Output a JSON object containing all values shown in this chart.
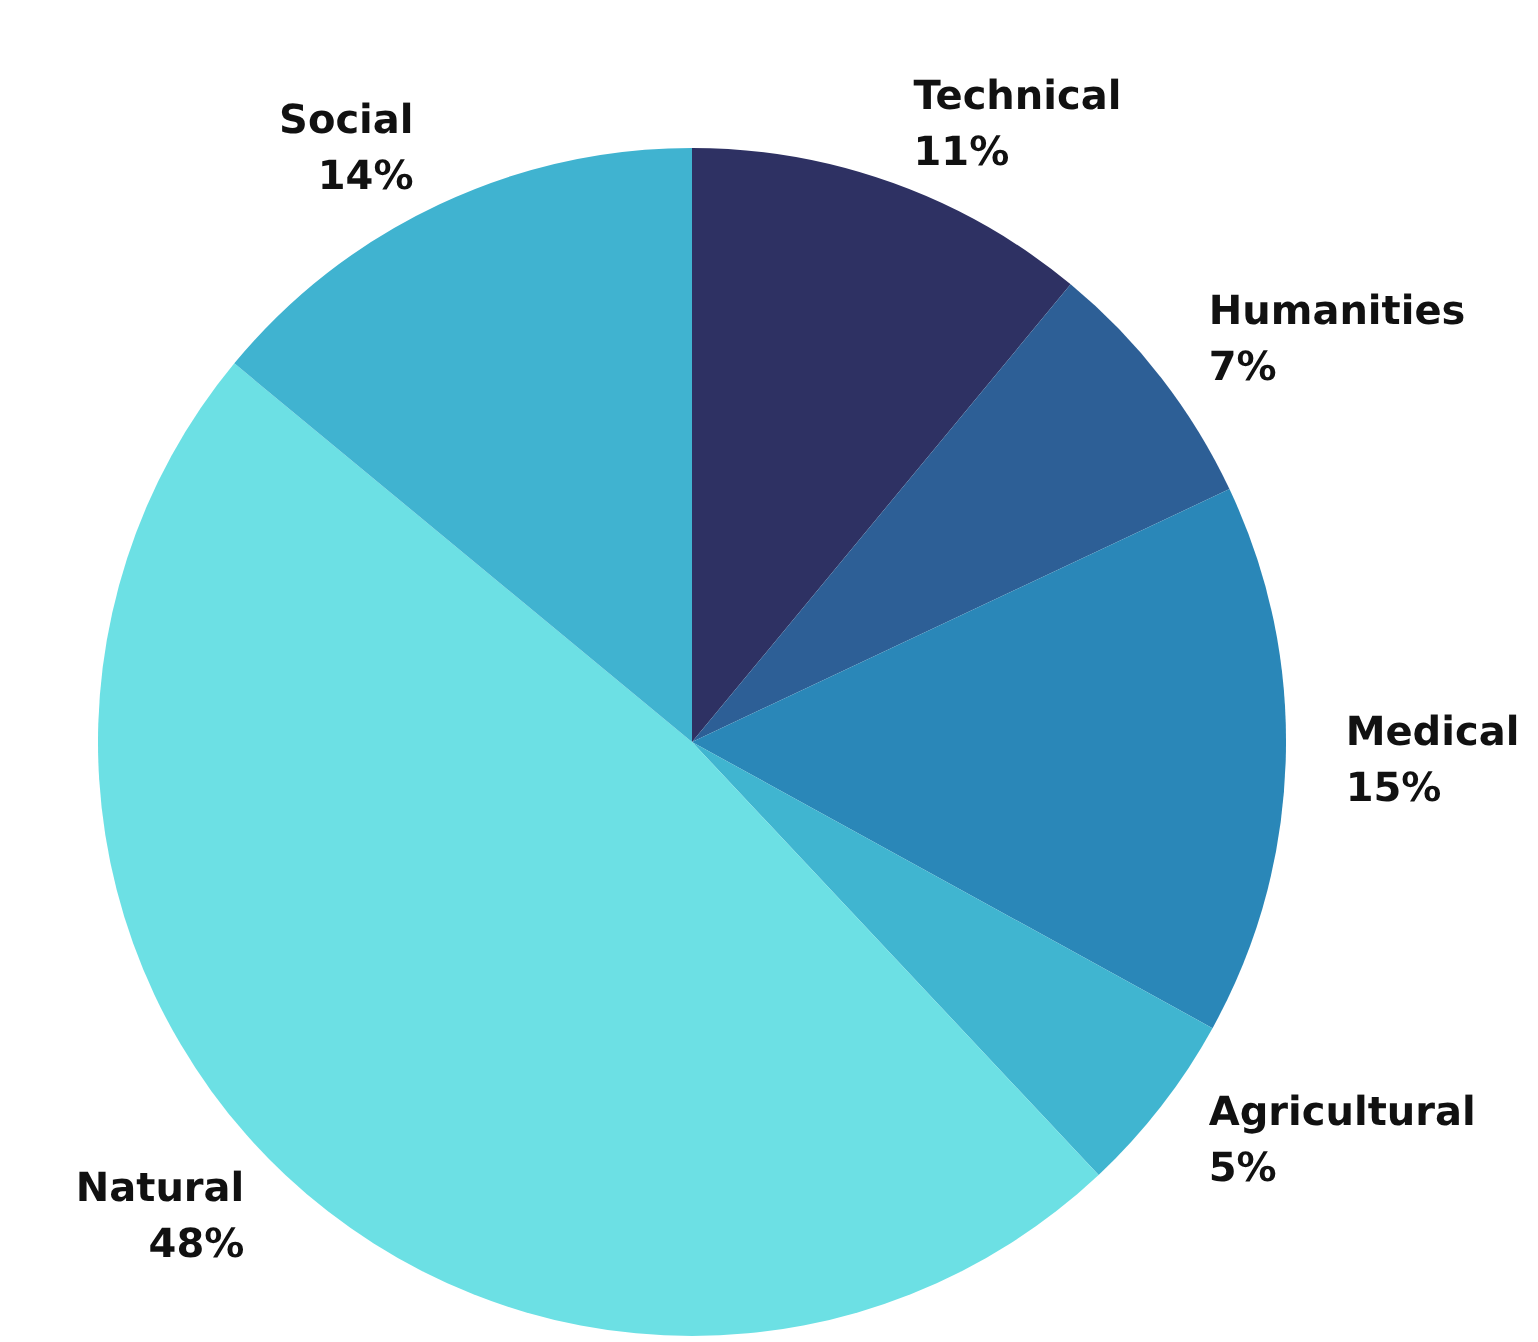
{
  "chart_data": {
    "type": "pie",
    "categories": [
      "Technical",
      "Humanities",
      "Medical",
      "Agricultural",
      "Natural",
      "Social"
    ],
    "values": [
      11,
      7,
      15,
      5,
      48,
      14
    ],
    "value_labels": [
      "11%",
      "7%",
      "15%",
      "5%",
      "48%",
      "14%"
    ],
    "colors": [
      "#2e3163",
      "#2d5f96",
      "#2a87b8",
      "#40b5d0",
      "#6ce0e4",
      "#40b3d0"
    ],
    "legend": false
  }
}
